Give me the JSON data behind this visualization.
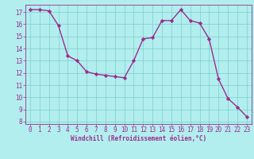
{
  "x": [
    0,
    1,
    2,
    3,
    4,
    5,
    6,
    7,
    8,
    9,
    10,
    11,
    12,
    13,
    14,
    15,
    16,
    17,
    18,
    19,
    20,
    21,
    22,
    23
  ],
  "y": [
    17.2,
    17.2,
    17.1,
    15.9,
    13.4,
    13.0,
    12.1,
    11.9,
    11.8,
    11.7,
    11.6,
    13.0,
    14.8,
    14.9,
    16.3,
    16.3,
    17.2,
    16.3,
    16.1,
    14.8,
    11.5,
    9.9,
    9.2,
    8.4
  ],
  "line_color": "#9b2d8e",
  "marker_color": "#9b2d8e",
  "bg_color": "#b2eeee",
  "grid_color": "#7ecece",
  "xlabel": "Windchill (Refroidissement éolien,°C)",
  "xlabel_color": "#9b2d8e",
  "tick_color": "#9b2d8e",
  "ylim_min": 7.8,
  "ylim_max": 17.6,
  "xlim_min": -0.5,
  "xlim_max": 23.5,
  "yticks": [
    8,
    9,
    10,
    11,
    12,
    13,
    14,
    15,
    16,
    17
  ],
  "xticks": [
    0,
    1,
    2,
    3,
    4,
    5,
    6,
    7,
    8,
    9,
    10,
    11,
    12,
    13,
    14,
    15,
    16,
    17,
    18,
    19,
    20,
    21,
    22,
    23
  ],
  "tick_fontsize": 5.5,
  "xlabel_fontsize": 5.5,
  "linewidth": 1.0,
  "markersize": 2.2
}
